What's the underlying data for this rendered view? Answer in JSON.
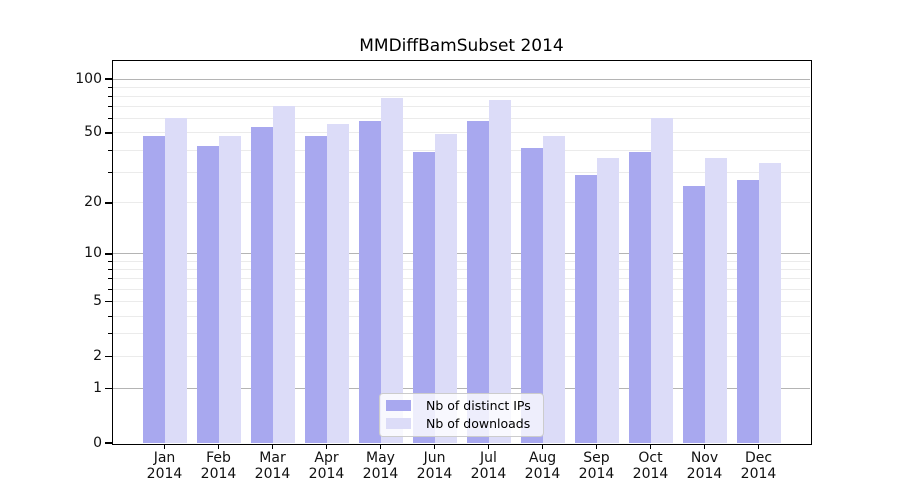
{
  "chart_data": {
    "type": "bar",
    "title": "MMDiffBamSubset 2014",
    "categories": [
      "Jan",
      "Feb",
      "Mar",
      "Apr",
      "May",
      "Jun",
      "Jul",
      "Aug",
      "Sep",
      "Oct",
      "Nov",
      "Dec"
    ],
    "category_year": "2014",
    "series": [
      {
        "name": "Nb of distinct IPs",
        "color": "#a8a8ef",
        "values": [
          48,
          42,
          54,
          48,
          58,
          39,
          58,
          41,
          29,
          39,
          25,
          27
        ]
      },
      {
        "name": "Nb of downloads",
        "color": "#dcdcf8",
        "values": [
          61,
          48,
          71,
          56,
          78,
          49,
          76,
          48,
          36,
          61,
          36,
          34
        ]
      }
    ],
    "xlabel": "",
    "ylabel": "",
    "yscale": "log1p",
    "ylim": [
      0,
      126
    ],
    "yticks_labeled": [
      0,
      1,
      2,
      5,
      10,
      20,
      50,
      100
    ],
    "gridlines_major": [
      1,
      10,
      100
    ],
    "gridlines_minor": [
      2,
      3,
      4,
      5,
      6,
      7,
      8,
      9,
      20,
      30,
      40,
      50,
      60,
      70,
      80,
      90
    ],
    "grid": true,
    "legend_position": "lower-center-inside"
  }
}
